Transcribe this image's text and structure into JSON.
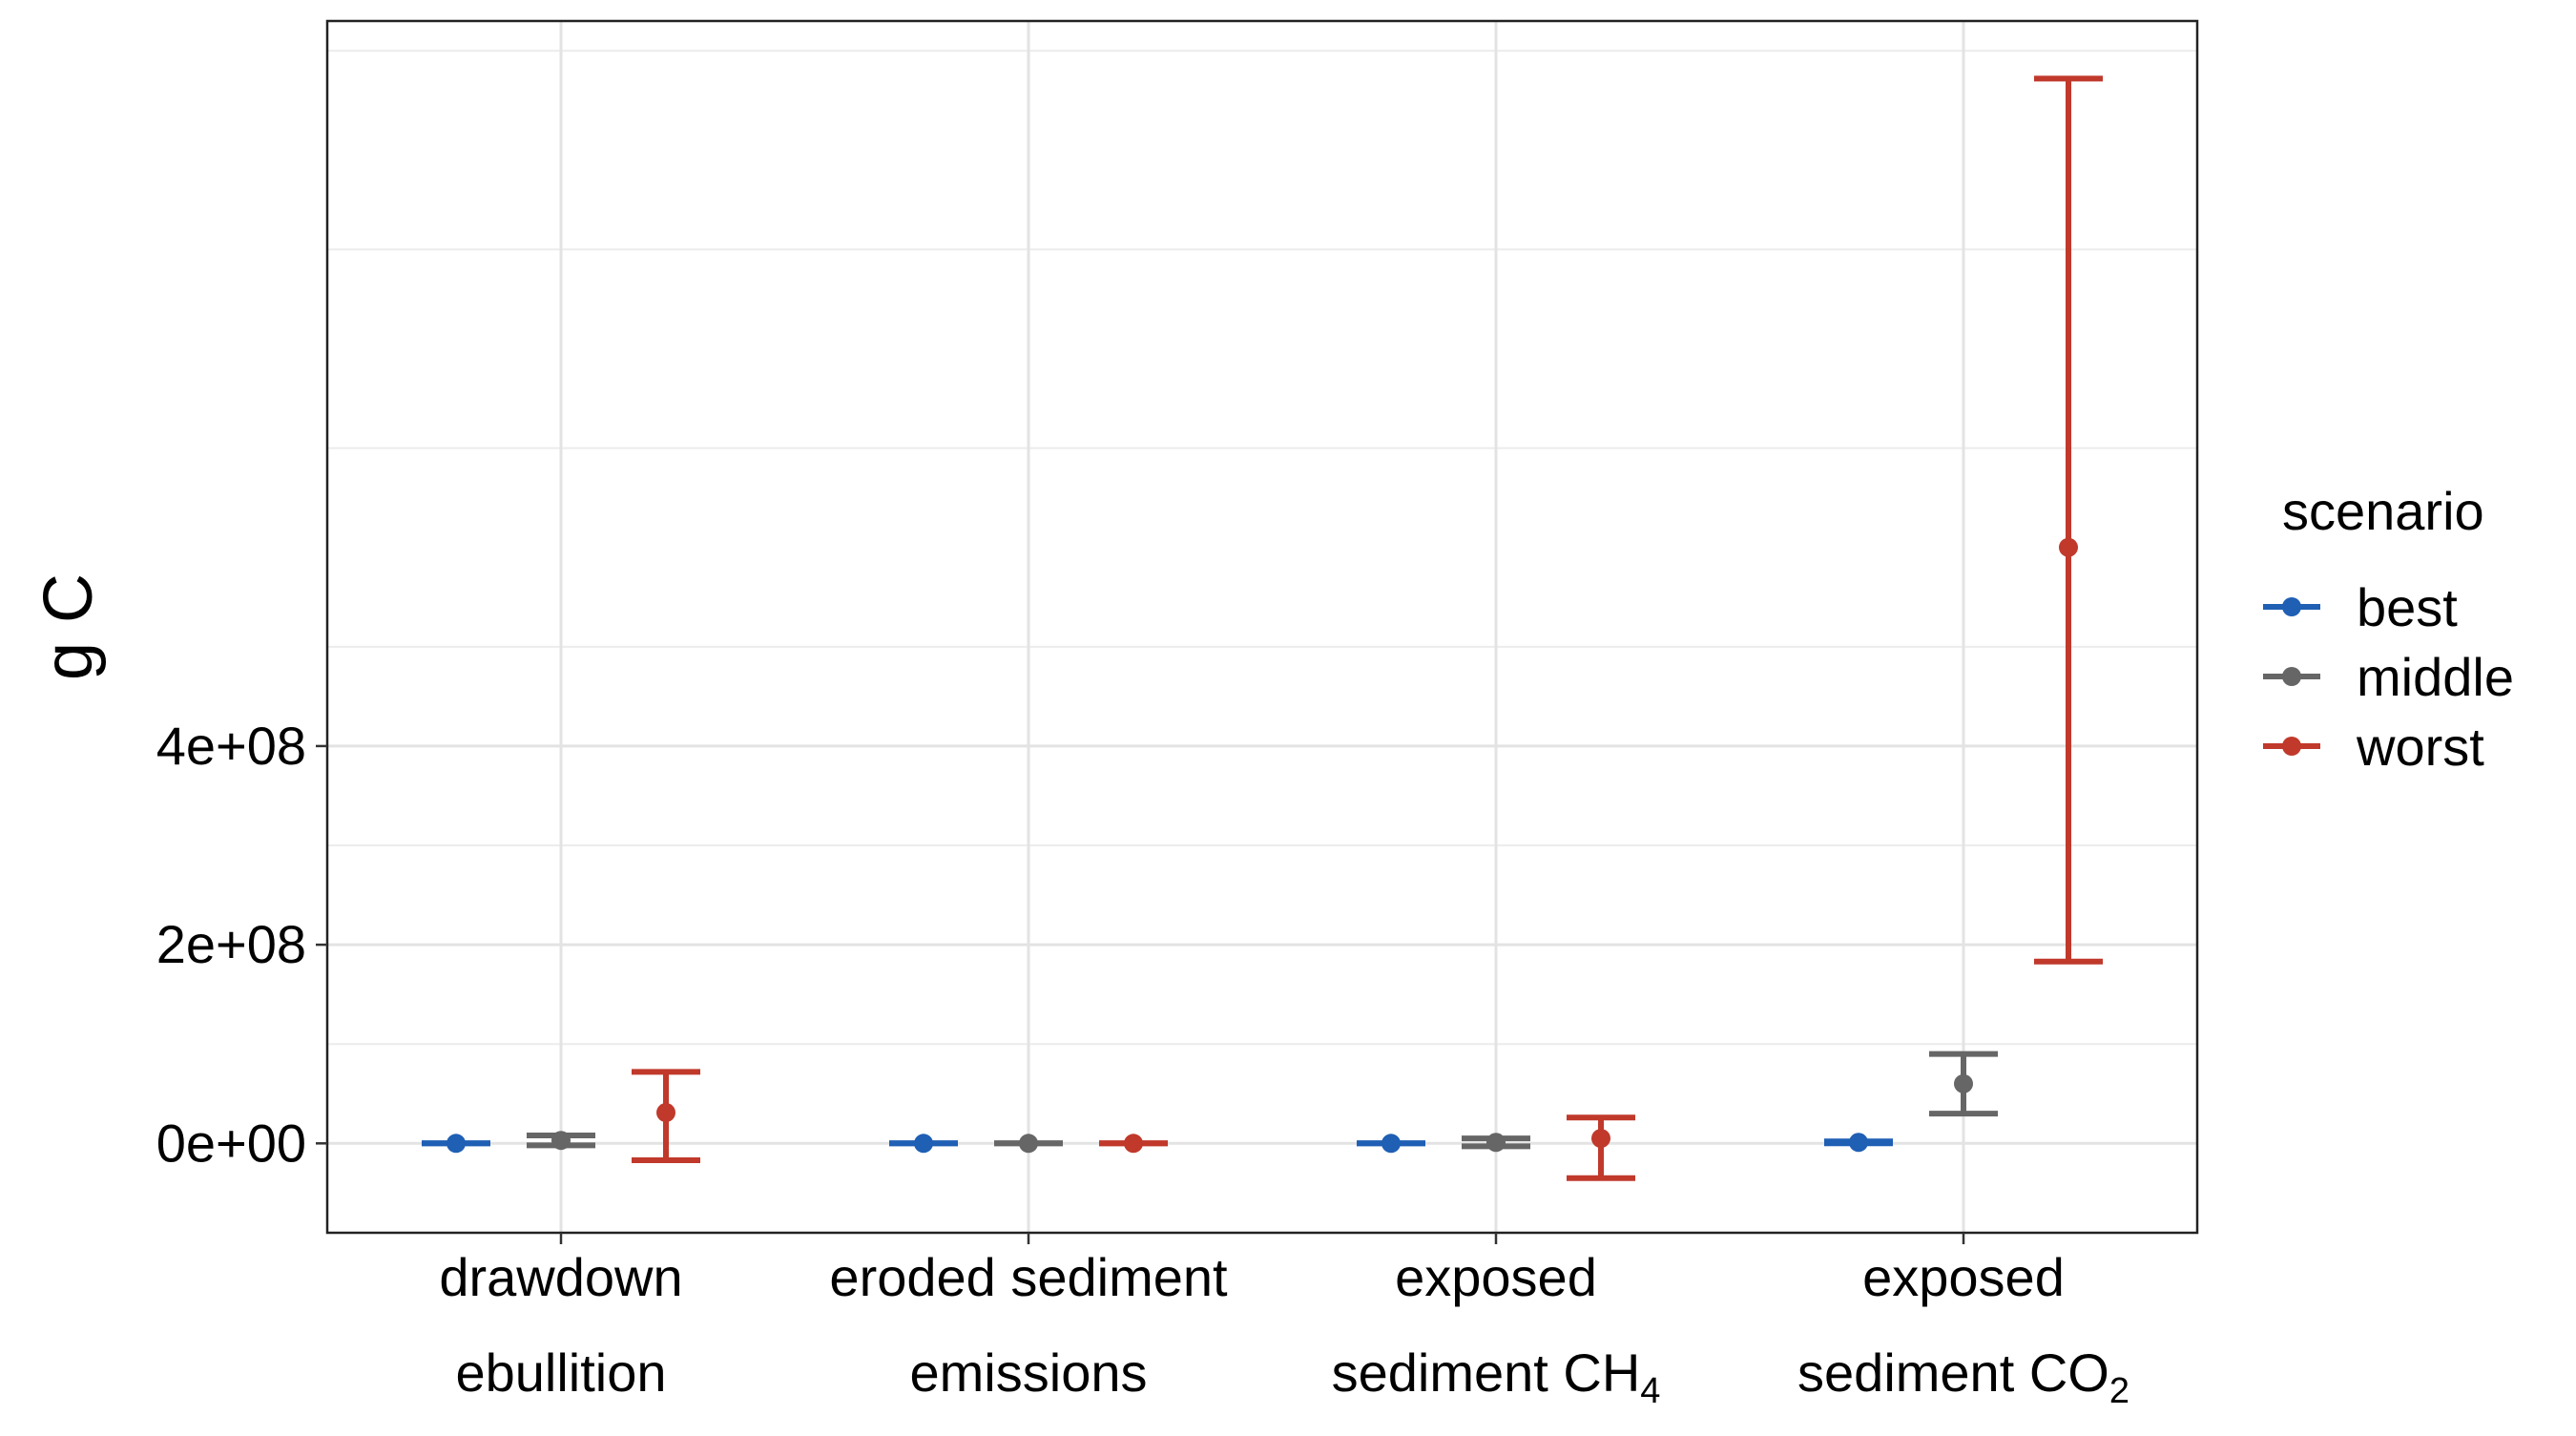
{
  "chart_data": {
    "type": "errorbar",
    "title": "",
    "xlabel": "",
    "ylabel": "g C",
    "ylim": [
      -90000000,
      1130000000
    ],
    "y_ticks": [
      0,
      200000000,
      400000000
    ],
    "y_tick_labels": [
      "0e+00",
      "2e+08",
      "4e+08"
    ],
    "categories": [
      {
        "line1": "drawdown",
        "line2": "ebullition",
        "sub": ""
      },
      {
        "line1": "eroded sediment",
        "line2": "emissions",
        "sub": ""
      },
      {
        "line1": "exposed",
        "line2": "sediment CH",
        "sub": "4"
      },
      {
        "line1": "exposed",
        "line2": "sediment CO",
        "sub": "2"
      }
    ],
    "legend": {
      "title": "scenario",
      "position": "right"
    },
    "series": [
      {
        "name": "best",
        "color": "#1f5fb4",
        "values": [
          {
            "y": 0,
            "low": 0,
            "high": 0
          },
          {
            "y": 0,
            "low": 0,
            "high": 0
          },
          {
            "y": 0,
            "low": 0,
            "high": 0
          },
          {
            "y": 1000000,
            "low": 0,
            "high": 2000000
          }
        ]
      },
      {
        "name": "middle",
        "color": "#666666",
        "values": [
          {
            "y": 3000000,
            "low": -2000000,
            "high": 8000000
          },
          {
            "y": 0,
            "low": 0,
            "high": 0
          },
          {
            "y": 1000000,
            "low": -3000000,
            "high": 5000000
          },
          {
            "y": 60000000,
            "low": 30000000,
            "high": 90000000
          }
        ]
      },
      {
        "name": "worst",
        "color": "#c0392b",
        "values": [
          {
            "y": 31000000,
            "low": -17000000,
            "high": 72000000
          },
          {
            "y": 0,
            "low": 0,
            "high": 0
          },
          {
            "y": 5000000,
            "low": -35000000,
            "high": 26000000
          },
          {
            "y": 600000000,
            "low": 183000000,
            "high": 1072000000
          }
        ]
      }
    ],
    "grid": true
  }
}
